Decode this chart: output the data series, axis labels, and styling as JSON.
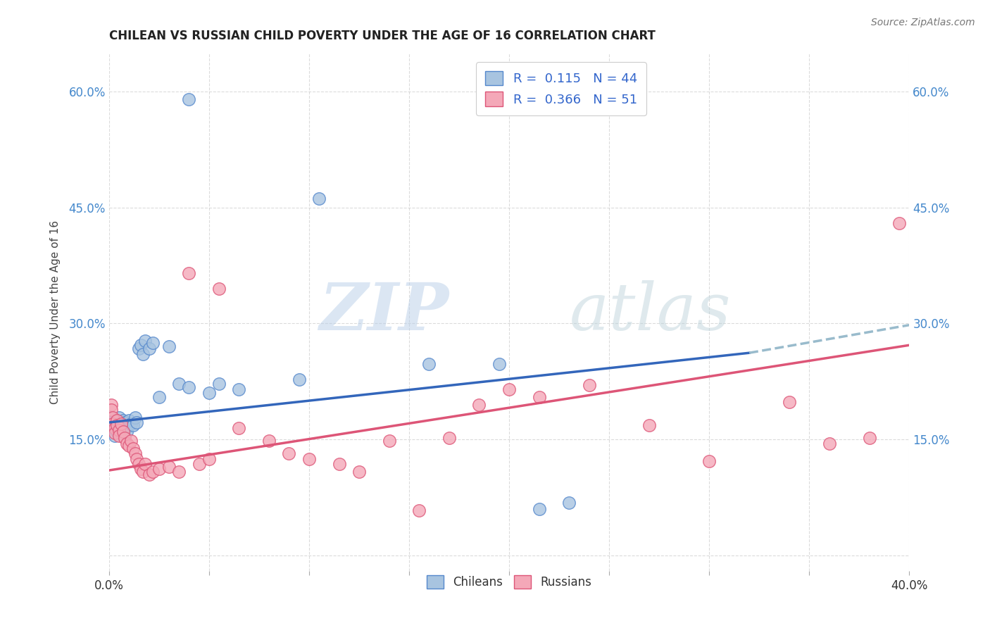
{
  "title": "CHILEAN VS RUSSIAN CHILD POVERTY UNDER THE AGE OF 16 CORRELATION CHART",
  "source": "Source: ZipAtlas.com",
  "ylabel": "Child Poverty Under the Age of 16",
  "xlim": [
    0.0,
    0.4
  ],
  "ylim": [
    -0.02,
    0.65
  ],
  "x_ticks": [
    0.0,
    0.05,
    0.1,
    0.15,
    0.2,
    0.25,
    0.3,
    0.35,
    0.4
  ],
  "y_ticks": [
    0.0,
    0.15,
    0.3,
    0.45,
    0.6
  ],
  "chilean_color": "#a8c4e0",
  "russian_color": "#f4a8b8",
  "chilean_edge": "#5588cc",
  "russian_edge": "#dd5577",
  "trendline_chilean_color": "#3366bb",
  "trendline_russian_color": "#dd5577",
  "trendline_dashed_color": "#99bbcc",
  "legend_r_chilean": "0.115",
  "legend_n_chilean": "44",
  "legend_r_russian": "0.366",
  "legend_n_russian": "51",
  "watermark_zip": "ZIP",
  "watermark_atlas": "atlas",
  "chilean_x": [
    0.001,
    0.001,
    0.002,
    0.002,
    0.003,
    0.003,
    0.003,
    0.004,
    0.004,
    0.004,
    0.005,
    0.005,
    0.006,
    0.006,
    0.007,
    0.007,
    0.008,
    0.008,
    0.009,
    0.01,
    0.011,
    0.012,
    0.013,
    0.014,
    0.015,
    0.016,
    0.017,
    0.018,
    0.02,
    0.022,
    0.025,
    0.03,
    0.035,
    0.04,
    0.05,
    0.055,
    0.065,
    0.095,
    0.16,
    0.195,
    0.215,
    0.23,
    0.105,
    0.04
  ],
  "chilean_y": [
    0.178,
    0.172,
    0.17,
    0.165,
    0.168,
    0.162,
    0.155,
    0.175,
    0.168,
    0.16,
    0.178,
    0.17,
    0.165,
    0.158,
    0.175,
    0.168,
    0.172,
    0.162,
    0.16,
    0.175,
    0.17,
    0.168,
    0.178,
    0.172,
    0.268,
    0.272,
    0.26,
    0.278,
    0.268,
    0.275,
    0.205,
    0.27,
    0.222,
    0.218,
    0.21,
    0.222,
    0.215,
    0.228,
    0.248,
    0.248,
    0.06,
    0.068,
    0.462,
    0.59
  ],
  "russian_x": [
    0.001,
    0.001,
    0.002,
    0.002,
    0.003,
    0.003,
    0.004,
    0.004,
    0.005,
    0.005,
    0.006,
    0.007,
    0.008,
    0.009,
    0.01,
    0.011,
    0.012,
    0.013,
    0.014,
    0.015,
    0.016,
    0.017,
    0.018,
    0.02,
    0.022,
    0.025,
    0.03,
    0.035,
    0.04,
    0.045,
    0.05,
    0.055,
    0.065,
    0.08,
    0.09,
    0.1,
    0.115,
    0.125,
    0.14,
    0.155,
    0.17,
    0.185,
    0.2,
    0.215,
    0.24,
    0.27,
    0.3,
    0.34,
    0.36,
    0.38,
    0.395
  ],
  "russian_y": [
    0.195,
    0.188,
    0.178,
    0.17,
    0.165,
    0.158,
    0.175,
    0.168,
    0.162,
    0.155,
    0.17,
    0.16,
    0.152,
    0.145,
    0.142,
    0.148,
    0.138,
    0.132,
    0.125,
    0.118,
    0.112,
    0.108,
    0.118,
    0.105,
    0.108,
    0.112,
    0.115,
    0.108,
    0.365,
    0.118,
    0.125,
    0.345,
    0.165,
    0.148,
    0.132,
    0.125,
    0.118,
    0.108,
    0.148,
    0.058,
    0.152,
    0.195,
    0.215,
    0.205,
    0.22,
    0.168,
    0.122,
    0.198,
    0.145,
    0.152,
    0.43
  ],
  "background_color": "#ffffff",
  "grid_color": "#cccccc"
}
